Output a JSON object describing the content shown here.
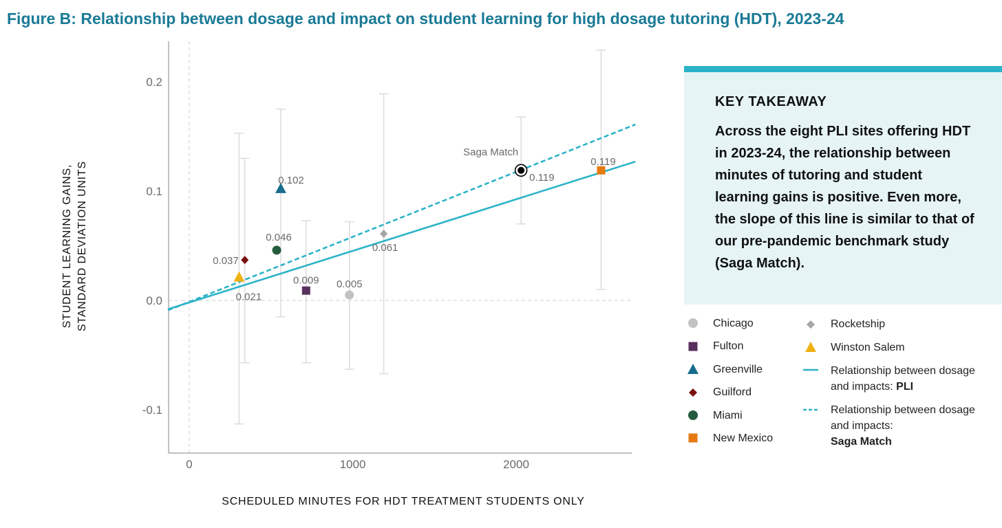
{
  "figure_title": "Figure B: Relationship between dosage and impact on student learning for high dosage tutoring (HDT), 2023-24",
  "chart_data": {
    "type": "scatter",
    "xlabel": "SCHEDULED MINUTES FOR HDT TREATMENT STUDENTS ONLY",
    "ylabel_line1": "STUDENT LEARNING GAINS,",
    "ylabel_line2": "STANDARD DEVIATION UNITS",
    "xlim": [
      -130,
      2730
    ],
    "ylim": [
      -0.14,
      0.24
    ],
    "xticks": [
      0,
      1000,
      2000
    ],
    "xtick_labels": [
      "0",
      "1000",
      "2000"
    ],
    "yticks": [
      0.2,
      0.1,
      0.0,
      -0.1
    ],
    "ytick_labels": [
      "0.2",
      "0.1",
      "0.0",
      "-0.1"
    ],
    "points": [
      {
        "name": "Chicago",
        "x": 980,
        "y": 0.005,
        "label": "0.005",
        "ci": [
          -0.063,
          0.072
        ],
        "color": "#c2c2c2",
        "shape": "circle"
      },
      {
        "name": "Fulton",
        "x": 715,
        "y": 0.009,
        "label": "0.009",
        "ci": [
          -0.057,
          0.073
        ],
        "color": "#59305d",
        "shape": "square"
      },
      {
        "name": "Greenville",
        "x": 560,
        "y": 0.102,
        "label": "0.102",
        "ci": [
          -0.015,
          0.175
        ],
        "color": "#1a6d8c",
        "shape": "triangle"
      },
      {
        "name": "Guilford",
        "x": 340,
        "y": 0.037,
        "label": "0.037",
        "ci": [
          -0.057,
          0.13
        ],
        "color": "#7a1010",
        "shape": "diamond"
      },
      {
        "name": "Miami",
        "x": 535,
        "y": 0.046,
        "label": "0.046",
        "ci": null,
        "color": "#245c3d",
        "shape": "circle"
      },
      {
        "name": "New Mexico",
        "x": 2520,
        "y": 0.119,
        "label": "0.119",
        "ci": [
          0.01,
          0.229
        ],
        "color": "#e57a10",
        "shape": "square"
      },
      {
        "name": "Rocketship",
        "x": 1190,
        "y": 0.061,
        "label": "0.061",
        "ci": [
          -0.067,
          0.189
        ],
        "color": "#a6a6a6",
        "shape": "diamond"
      },
      {
        "name": "Winston Salem",
        "x": 305,
        "y": 0.021,
        "label": "0.021",
        "ci": [
          -0.113,
          0.153
        ],
        "color": "#f0b116",
        "shape": "triangle"
      },
      {
        "name": "Saga Match",
        "x": 2030,
        "y": 0.119,
        "label": "0.119",
        "ci": [
          0.07,
          0.168
        ],
        "color": "#000000",
        "shape": "target"
      }
    ],
    "saga_match_label": "Saga Match",
    "lines": [
      {
        "name": "PLI",
        "style": "solid",
        "color": "#2bb3c7",
        "from": [
          -130,
          -0.008
        ],
        "to": [
          2730,
          0.127
        ]
      },
      {
        "name": "Saga Match",
        "style": "dashed",
        "color": "#2bb3c7",
        "from": [
          -130,
          -0.009
        ],
        "to": [
          2730,
          0.161
        ]
      }
    ],
    "grid": false
  },
  "takeaway": {
    "heading": "KEY TAKEAWAY",
    "body": "Across the eight PLI sites offering HDT in 2023-24, the relationship between minutes of tutoring and student learning gains is positive. Even more, the slope of this line is similar to that of our pre-pandemic benchmark study (Saga Match)."
  },
  "legend": {
    "chicago": "Chicago",
    "fulton": "Fulton",
    "greenville": "Greenville",
    "guilford": "Guilford",
    "miami": "Miami",
    "new_mexico": "New Mexico",
    "rocketship": "Rocketship",
    "winston_salem": "Winston Salem",
    "pli_line_text": "Relationship between dosage and impacts: ",
    "pli_line_bold": "PLI",
    "saga_line_text": "Relationship between dosage and impacts:",
    "saga_line_bold": "Saga Match"
  }
}
